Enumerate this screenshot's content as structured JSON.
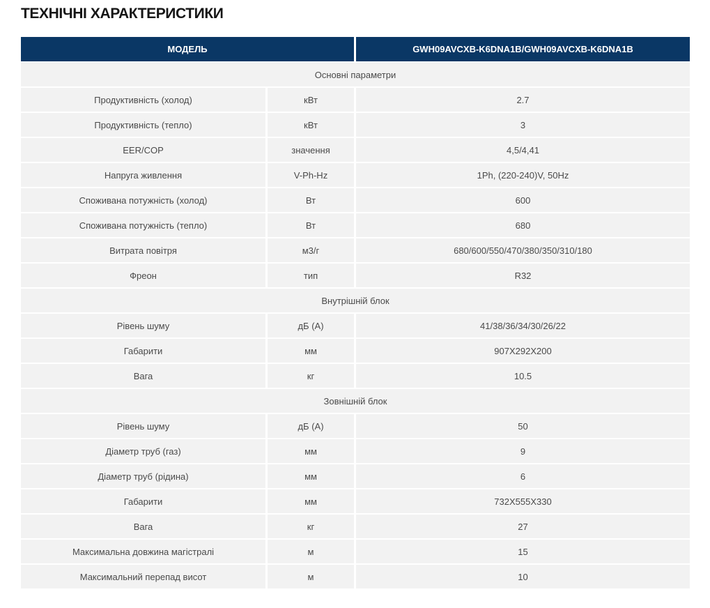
{
  "page": {
    "title": "ТЕХНІЧНІ ХАРАКТЕРИСТИКИ"
  },
  "colors": {
    "header_bg": "#0a3765",
    "row_bg": "#f2f2f2",
    "header_text": "#ffffff",
    "cell_text": "#4a4a4a"
  },
  "spec_table": {
    "header": {
      "model_label": "МОДЕЛЬ",
      "model_value": "GWH09AVCXB-K6DNA1B/GWH09AVCXB-K6DNA1B"
    },
    "rows": [
      {
        "type": "section",
        "label": "Основні параметри"
      },
      {
        "type": "data",
        "name": "Продуктивність (холод)",
        "unit": "кВт",
        "value": "2.7"
      },
      {
        "type": "data",
        "name": "Продуктивність (тепло)",
        "unit": "кВт",
        "value": "3"
      },
      {
        "type": "data",
        "name": "EER/COP",
        "unit": "значення",
        "value": "4,5/4,41"
      },
      {
        "type": "data",
        "name": "Напруга живлення",
        "unit": "V-Ph-Hz",
        "value": "1Ph, (220-240)V, 50Hz"
      },
      {
        "type": "data",
        "name": "Споживана потужність (холод)",
        "unit": "Вт",
        "value": "600"
      },
      {
        "type": "data",
        "name": "Споживана потужність (тепло)",
        "unit": "Вт",
        "value": "680"
      },
      {
        "type": "data",
        "name": "Витрата повітря",
        "unit": "м3/г",
        "value": "680/600/550/470/380/350/310/180"
      },
      {
        "type": "data",
        "name": "Фреон",
        "unit": "тип",
        "value": "R32"
      },
      {
        "type": "section",
        "label": "Внутрішній блок"
      },
      {
        "type": "data",
        "name": "Рівень шуму",
        "unit": "дБ (А)",
        "value": "41/38/36/34/30/26/22"
      },
      {
        "type": "data",
        "name": "Габарити",
        "unit": "мм",
        "value": "907X292X200"
      },
      {
        "type": "data",
        "name": "Вага",
        "unit": "кг",
        "value": "10.5"
      },
      {
        "type": "section",
        "label": "Зовнішній блок"
      },
      {
        "type": "data",
        "name": "Рівень шуму",
        "unit": "дБ (А)",
        "value": "50"
      },
      {
        "type": "data",
        "name": "Діаметр труб (газ)",
        "unit": "мм",
        "value": "9"
      },
      {
        "type": "data",
        "name": "Діаметр труб (рідина)",
        "unit": "мм",
        "value": "6"
      },
      {
        "type": "data",
        "name": "Габарити",
        "unit": "мм",
        "value": "732X555X330"
      },
      {
        "type": "data",
        "name": "Вага",
        "unit": "кг",
        "value": "27"
      },
      {
        "type": "data",
        "name": "Максимальна довжина магістралі",
        "unit": "м",
        "value": "15"
      },
      {
        "type": "data",
        "name": "Максимальний перепад висот",
        "unit": "м",
        "value": "10"
      }
    ]
  }
}
